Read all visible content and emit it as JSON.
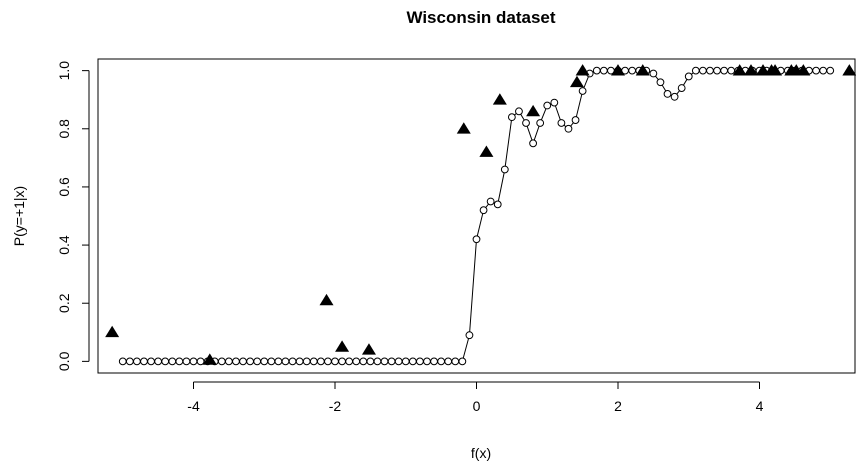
{
  "chart_data": {
    "type": "scatter",
    "title": "Wisconsin dataset",
    "xlabel": "f(x)",
    "ylabel": "P(y=+1|x)",
    "xlim": [
      -5.35,
      5.35
    ],
    "ylim": [
      -0.04,
      1.04
    ],
    "xticks": [
      -4,
      -2,
      0,
      2,
      4
    ],
    "yticks": [
      0.0,
      0.2,
      0.4,
      0.6,
      0.8,
      1.0
    ],
    "xtick_labels": [
      "-4",
      "-2",
      "0",
      "2",
      "4"
    ],
    "ytick_labels": [
      "0.0",
      "0.2",
      "0.4",
      "0.6",
      "0.8",
      "1.0"
    ],
    "grid": false,
    "series": [
      {
        "style": "line-with-open-circles",
        "color": "#000000",
        "x": [
          -5.0,
          -4.9,
          -4.8,
          -4.7,
          -4.6,
          -4.5,
          -4.4,
          -4.3,
          -4.2,
          -4.1,
          -4.0,
          -3.9,
          -3.8,
          -3.7,
          -3.6,
          -3.5,
          -3.4,
          -3.3,
          -3.2,
          -3.1,
          -3.0,
          -2.9,
          -2.8,
          -2.7,
          -2.6,
          -2.5,
          -2.4,
          -2.3,
          -2.2,
          -2.1,
          -2.0,
          -1.9,
          -1.8,
          -1.7,
          -1.6,
          -1.5,
          -1.4,
          -1.3,
          -1.2,
          -1.1,
          -1.0,
          -0.9,
          -0.8,
          -0.7,
          -0.6,
          -0.5,
          -0.4,
          -0.3,
          -0.2,
          -0.1,
          0.0,
          0.1,
          0.2,
          0.3,
          0.4,
          0.5,
          0.6,
          0.7,
          0.8,
          0.9,
          1.0,
          1.1,
          1.2,
          1.3,
          1.4,
          1.5,
          1.6,
          1.7,
          1.8,
          1.9,
          2.0,
          2.1,
          2.2,
          2.3,
          2.4,
          2.5,
          2.6,
          2.7,
          2.8,
          2.9,
          3.0,
          3.1,
          3.2,
          3.3,
          3.4,
          3.5,
          3.6,
          3.7,
          3.8,
          3.9,
          4.0,
          4.1,
          4.2,
          4.3,
          4.4,
          4.5,
          4.6,
          4.7,
          4.8,
          4.9,
          5.0
        ],
        "y": [
          0,
          0,
          0,
          0,
          0,
          0,
          0,
          0,
          0,
          0,
          0,
          0,
          0,
          0,
          0,
          0,
          0,
          0,
          0,
          0,
          0,
          0,
          0,
          0,
          0,
          0,
          0,
          0,
          0,
          0,
          0,
          0,
          0,
          0,
          0,
          0,
          0,
          0,
          0,
          0,
          0,
          0,
          0,
          0,
          0,
          0,
          0,
          0,
          0,
          0.09,
          0.42,
          0.52,
          0.55,
          0.54,
          0.66,
          0.84,
          0.86,
          0.82,
          0.75,
          0.82,
          0.88,
          0.89,
          0.82,
          0.8,
          0.83,
          0.93,
          0.99,
          1.0,
          1.0,
          1.0,
          1.0,
          1.0,
          1.0,
          1.0,
          1.0,
          0.99,
          0.96,
          0.92,
          0.91,
          0.94,
          0.98,
          1.0,
          1.0,
          1.0,
          1.0,
          1.0,
          1.0,
          1.0,
          1.0,
          1.0,
          1.0,
          1.0,
          1.0,
          1.0,
          1.0,
          1.0,
          1.0,
          1.0,
          1.0,
          1.0,
          1.0
        ]
      },
      {
        "style": "filled-triangles",
        "color": "#000000",
        "x": [
          -5.15,
          -3.77,
          -2.12,
          -1.9,
          -1.52,
          -0.18,
          0.14,
          0.33,
          0.8,
          1.42,
          1.5,
          2.0,
          2.35,
          3.72,
          3.88,
          4.05,
          4.17,
          4.22,
          4.45,
          4.52,
          4.62,
          5.27
        ],
        "y": [
          0.1,
          0.005,
          0.21,
          0.05,
          0.04,
          0.8,
          0.72,
          0.9,
          0.86,
          0.96,
          1.0,
          1.0,
          1.0,
          1.0,
          1.0,
          1.0,
          1.0,
          1.0,
          1.0,
          1.0,
          1.0,
          1.0
        ]
      }
    ]
  }
}
